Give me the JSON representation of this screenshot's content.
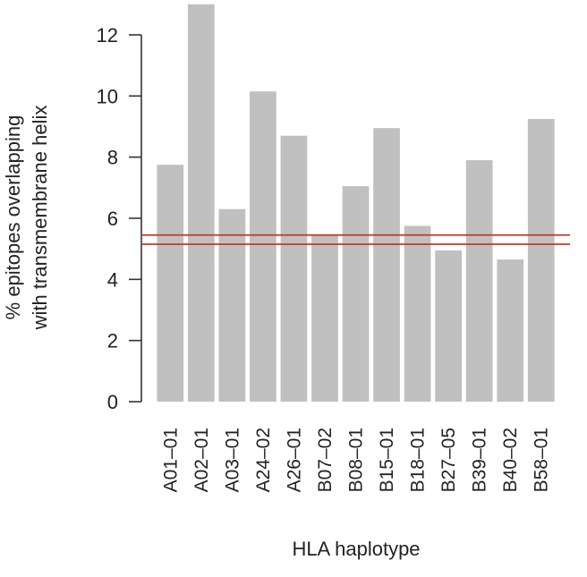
{
  "chart_data": {
    "type": "bar",
    "categories": [
      "A01–01",
      "A02–01",
      "A03–01",
      "A24–02",
      "A26–01",
      "B07–02",
      "B08–01",
      "B15–01",
      "B18–01",
      "B27–05",
      "B39–01",
      "B40–02",
      "B58–01"
    ],
    "values": [
      7.75,
      13.0,
      6.3,
      10.15,
      8.7,
      5.45,
      7.05,
      8.95,
      5.75,
      4.95,
      7.9,
      4.65,
      9.25
    ],
    "reference_lines": [
      5.15,
      5.45
    ],
    "xlabel": "HLA haplotype",
    "ylabel_lines": [
      "% epitopes overlapping",
      "with transmembrane helix"
    ],
    "yticks": [
      0,
      2,
      4,
      6,
      8,
      10,
      12
    ],
    "ylim": [
      0,
      13
    ],
    "grid": false,
    "colors": {
      "bar": "#c0c0c0",
      "reference_line": "#c0392b",
      "axis": "#333333"
    }
  }
}
